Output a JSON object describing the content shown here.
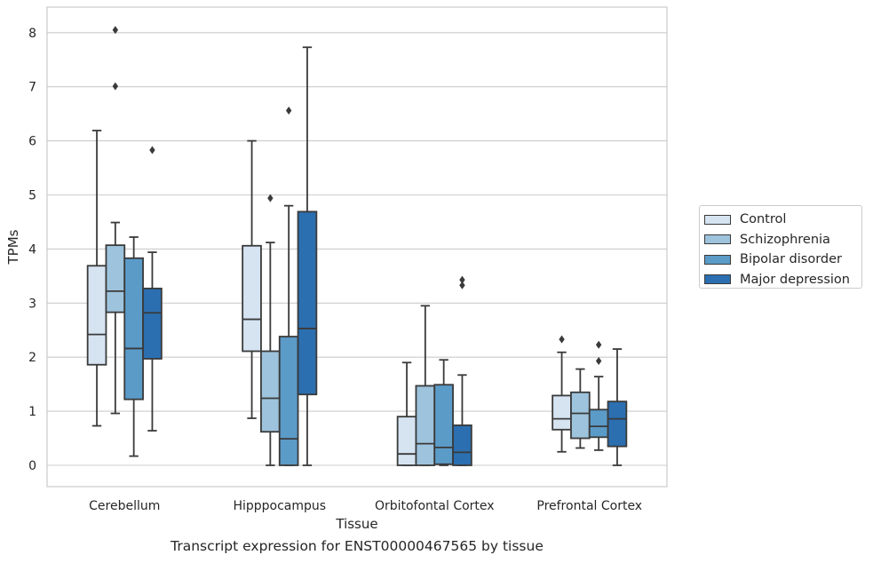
{
  "chart_data": {
    "type": "boxplot",
    "title": "",
    "caption": "Transcript expression for ENST00000467565 by tissue",
    "xlabel": "Tissue",
    "ylabel": "TPMs",
    "ylim": [
      -0.4,
      8.5
    ],
    "yticks": [
      0,
      1,
      2,
      3,
      4,
      5,
      6,
      7,
      8
    ],
    "grid": true,
    "legend_position": "right",
    "categories": [
      "Cerebellum",
      "Hipppocampus",
      "Orbitofontal Cortex",
      "Prefrontal Cortex"
    ],
    "series": [
      {
        "name": "Control",
        "color": "#d6e4f2",
        "boxes": [
          {
            "whislo": 0.73,
            "q1": 1.86,
            "med": 2.42,
            "q3": 3.69,
            "whishi": 6.19,
            "fliers": []
          },
          {
            "whislo": 0.87,
            "q1": 2.11,
            "med": 2.7,
            "q3": 4.06,
            "whishi": 6.0,
            "fliers": []
          },
          {
            "whislo": 0.0,
            "q1": 0.0,
            "med": 0.21,
            "q3": 0.9,
            "whishi": 1.9,
            "fliers": []
          },
          {
            "whislo": 0.25,
            "q1": 0.66,
            "med": 0.86,
            "q3": 1.29,
            "whishi": 2.09,
            "fliers": [
              2.33
            ]
          }
        ]
      },
      {
        "name": "Schizophrenia",
        "color": "#9ec3dc",
        "boxes": [
          {
            "whislo": 0.96,
            "q1": 2.83,
            "med": 3.22,
            "q3": 4.07,
            "whishi": 4.49,
            "fliers": [
              7.01,
              8.05
            ]
          },
          {
            "whislo": 0.0,
            "q1": 0.62,
            "med": 1.24,
            "q3": 2.11,
            "whishi": 4.12,
            "fliers": [
              4.94
            ]
          },
          {
            "whislo": 0.0,
            "q1": 0.0,
            "med": 0.4,
            "q3": 1.47,
            "whishi": 2.95,
            "fliers": []
          },
          {
            "whislo": 0.32,
            "q1": 0.5,
            "med": 0.96,
            "q3": 1.35,
            "whishi": 1.78,
            "fliers": []
          }
        ]
      },
      {
        "name": "Bipolar disorder",
        "color": "#5b9bc8",
        "boxes": [
          {
            "whislo": 0.17,
            "q1": 1.22,
            "med": 2.16,
            "q3": 3.83,
            "whishi": 4.22,
            "fliers": []
          },
          {
            "whislo": 0.0,
            "q1": 0.0,
            "med": 0.49,
            "q3": 2.38,
            "whishi": 4.8,
            "fliers": [
              6.56
            ]
          },
          {
            "whislo": 0.0,
            "q1": 0.02,
            "med": 0.33,
            "q3": 1.49,
            "whishi": 1.95,
            "fliers": []
          },
          {
            "whislo": 0.28,
            "q1": 0.52,
            "med": 0.72,
            "q3": 1.03,
            "whishi": 1.64,
            "fliers": [
              1.93,
              2.23
            ]
          }
        ]
      },
      {
        "name": "Major depression",
        "color": "#2b6fb0",
        "boxes": [
          {
            "whislo": 0.64,
            "q1": 1.97,
            "med": 2.82,
            "q3": 3.27,
            "whishi": 3.94,
            "fliers": [
              5.83
            ]
          },
          {
            "whislo": 0.0,
            "q1": 1.31,
            "med": 2.53,
            "q3": 4.69,
            "whishi": 7.73,
            "fliers": []
          },
          {
            "whislo": 0.0,
            "q1": 0.0,
            "med": 0.24,
            "q3": 0.74,
            "whishi": 1.67,
            "fliers": [
              3.33,
              3.43
            ]
          },
          {
            "whislo": 0.0,
            "q1": 0.35,
            "med": 0.86,
            "q3": 1.18,
            "whishi": 2.15,
            "fliers": []
          }
        ]
      }
    ]
  }
}
